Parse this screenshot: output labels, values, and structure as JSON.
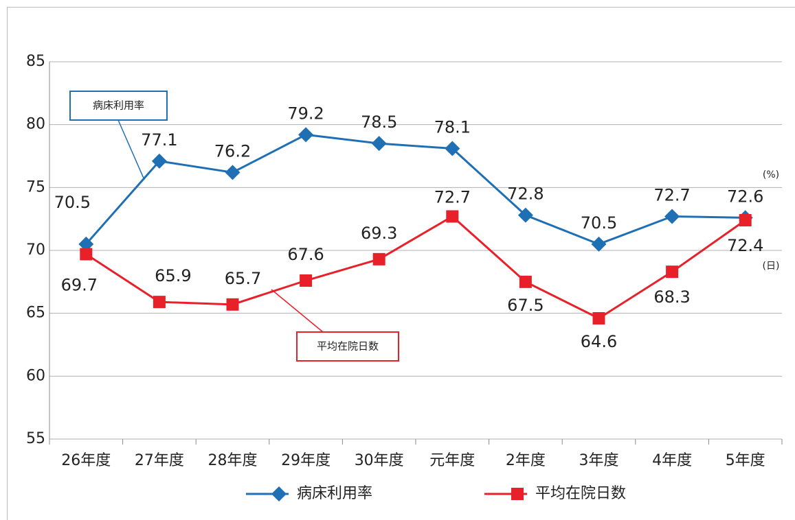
{
  "chart_data": {
    "type": "line",
    "categories": [
      "26年度",
      "27年度",
      "28年度",
      "29年度",
      "30年度",
      "元年度",
      "2年度",
      "3年度",
      "4年度",
      "5年度"
    ],
    "series": [
      {
        "name": "病床利用率",
        "color": "#1f6fb5",
        "marker": "diamond",
        "values": [
          70.5,
          77.1,
          76.2,
          79.2,
          78.5,
          78.1,
          72.8,
          70.5,
          72.7,
          72.6
        ]
      },
      {
        "name": "平均在院日数",
        "color": "#e8202a",
        "marker": "square",
        "values": [
          69.7,
          65.9,
          65.7,
          67.6,
          69.3,
          72.7,
          67.5,
          64.6,
          68.3,
          72.4
        ]
      }
    ],
    "ylim": [
      55,
      85
    ],
    "yticks": [
      55,
      60,
      65,
      70,
      75,
      80,
      85
    ],
    "grid": true,
    "callouts": [
      "病床利用率",
      "平均在院日数"
    ],
    "units": [
      "(%)",
      "(日)"
    ]
  }
}
